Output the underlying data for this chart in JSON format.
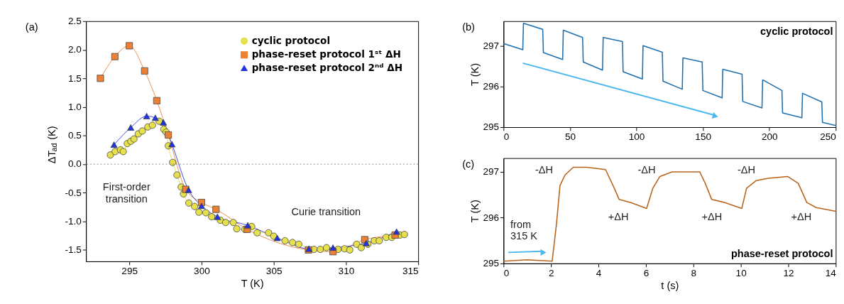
{
  "chart_data": [
    {
      "type": "line",
      "xlabel": "T (K)",
      "ylabel": "ΔT$_{ad}$ (K)",
      "xlim": [
        292,
        315
      ],
      "ylim": [
        -1.7,
        2.5
      ],
      "xticks": [
        295,
        300,
        305,
        310,
        315
      ],
      "yticks": [
        -1.5,
        {
          "value": -1,
          "label": "-1.0"
        },
        -0.5,
        {
          "value": 0,
          "label": "0.0"
        },
        0.5,
        {
          "value": 1,
          "label": "1.0"
        },
        1.5,
        {
          "value": 2,
          "label": "2.0"
        },
        2.5
      ],
      "grid": false,
      "legend": "top right",
      "annotations": [
        "(a)",
        "First-order\ntransition",
        "Curie transition"
      ],
      "ref_lines": [
        {
          "axis": "y",
          "value": 0,
          "color": "#888888",
          "line_style": "dotted"
        }
      ],
      "series": [
        {
          "name": "cyclic protocol",
          "color": "#e6e04c",
          "marker": "circle",
          "x": [
            293.69,
            294.02,
            294.39,
            294.58,
            294.86,
            295.1,
            295.32,
            295.62,
            295.9,
            296.28,
            296.6,
            297.07,
            297.39,
            297.55,
            297.7,
            298.0,
            298.3,
            298.59,
            298.75,
            299.12,
            299.52,
            299.82,
            300.3,
            300.7,
            301.3,
            301.67,
            302.2,
            302.44,
            303.0,
            303.47,
            303.85,
            304.64,
            305.0,
            305.78,
            306.3,
            306.73,
            307.78,
            308.22,
            308.65,
            309.45,
            309.9,
            310.26,
            310.74,
            311.05,
            311.52,
            311.96,
            312.3,
            312.78,
            313.17,
            313.73,
            314.04
          ],
          "values": [
            0.16,
            0.22,
            0.25,
            0.22,
            0.36,
            0.4,
            0.44,
            0.53,
            0.58,
            0.65,
            0.68,
            0.75,
            0.61,
            0.56,
            0.32,
            0.03,
            -0.19,
            -0.4,
            -0.52,
            -0.68,
            -0.74,
            -0.84,
            -0.85,
            -0.92,
            -0.98,
            -1.02,
            -1.02,
            -1.13,
            -1.14,
            -1.09,
            -1.2,
            -1.2,
            -1.26,
            -1.34,
            -1.37,
            -1.4,
            -1.49,
            -1.49,
            -1.46,
            -1.49,
            -1.48,
            -1.5,
            -1.4,
            -1.46,
            -1.4,
            -1.34,
            -1.34,
            -1.28,
            -1.28,
            -1.24,
            -1.23
          ],
          "errors": [
            0.05,
            0.05,
            0.05,
            0.05,
            0.05,
            0.05,
            0.05,
            0.05,
            0.05,
            0.05,
            0.05,
            0.05,
            0.05,
            0.05,
            0.05,
            0.05,
            0.05,
            0.05,
            0.05,
            0.05,
            0.05,
            0.05,
            0.05,
            0.05,
            0.05,
            0.05,
            0.05,
            0.05,
            0.05,
            0.05,
            0.05,
            0.05,
            0.05,
            0.05,
            0.05,
            0.05,
            0.05,
            0.05,
            0.05,
            0.05,
            0.05,
            0.05,
            0.05,
            0.05,
            0.05,
            0.05,
            0.05,
            0.05,
            0.05,
            0.05,
            0.05
          ]
        },
        {
          "name": "phase-reset protocol 1ˢᵗ ΔH",
          "color": "#ee8033",
          "marker": "square",
          "x": [
            293.0,
            294.0,
            295.0,
            296.06,
            296.9,
            297.7,
            298.9,
            300.0,
            301.0,
            303.16,
            307.4,
            309.1,
            311.3,
            313.4
          ],
          "values": [
            1.5,
            1.88,
            2.07,
            1.63,
            1.11,
            0.51,
            -0.44,
            -0.67,
            -0.79,
            -1.14,
            -1.5,
            -1.53,
            -1.32,
            -1.24
          ],
          "errors": [
            0.05,
            0.05,
            0.05,
            0.05,
            0.05,
            0.05,
            0.05,
            0.05,
            0.05,
            0.05,
            0.05,
            0.05,
            0.05,
            0.05
          ]
        },
        {
          "name": "phase-reset protocol 2ⁿᵈ ΔH",
          "color": "#2233dd",
          "marker": "triangle",
          "x": [
            293.94,
            295.1,
            296.2,
            296.8,
            297.36,
            297.95,
            299.1,
            300.0,
            301.1,
            303.2,
            305.24,
            307.43,
            309.1,
            311.4,
            313.5
          ],
          "values": [
            0.34,
            0.64,
            0.84,
            0.81,
            0.73,
            0.35,
            -0.45,
            -0.73,
            -0.92,
            -1.07,
            -1.29,
            -1.48,
            -1.46,
            -1.38,
            -1.18
          ],
          "errors": [
            0.05,
            0.05,
            0.05,
            0.05,
            0.05,
            0.05,
            0.05,
            0.05,
            0.05,
            0.05,
            0.05,
            0.05,
            0.05,
            0.05,
            0.05
          ]
        }
      ]
    },
    {
      "type": "line",
      "title": "cyclic protocol",
      "ylabel": "T (K)",
      "xlim": [
        0,
        250
      ],
      "ylim": [
        295,
        297.6
      ],
      "xticks": [
        0,
        50,
        100,
        150,
        200,
        250
      ],
      "yticks": [
        295,
        296,
        297
      ],
      "grid": false,
      "annotations": [
        "(b)"
      ],
      "series": [
        {
          "color": "#1f6fae",
          "x": [
            0,
            14.5,
            15,
            29.5,
            30,
            44.5,
            45,
            59.5,
            60,
            74.5,
            75,
            89.5,
            90,
            104.5,
            105,
            119.5,
            120,
            134.5,
            135,
            149.5,
            150,
            164.5,
            165,
            179.5,
            180,
            194.5,
            195,
            209.5,
            210,
            224.5,
            225,
            239.5,
            240,
            250
          ],
          "values": [
            297.05,
            296.9,
            297.55,
            297.4,
            296.83,
            296.66,
            297.38,
            297.2,
            296.6,
            296.4,
            297.2,
            297.1,
            296.36,
            296.18,
            297.0,
            296.84,
            296.13,
            295.93,
            296.7,
            296.6,
            295.9,
            295.72,
            296.42,
            296.3,
            295.63,
            295.47,
            296.16,
            295.9,
            295.35,
            295.23,
            295.83,
            295.62,
            295.12,
            295.04
          ]
        }
      ]
    },
    {
      "type": "line",
      "title": "phase-reset protocol",
      "xlabel": "t (s)",
      "ylabel": "T (K)",
      "xlim": [
        0,
        14
      ],
      "ylim": [
        295,
        297.3
      ],
      "xticks": [
        0,
        2,
        4,
        6,
        8,
        10,
        12,
        14
      ],
      "yticks": [
        295,
        296,
        297
      ],
      "grid": false,
      "annotations": [
        "(c)",
        "-ΔH",
        "-ΔH",
        "-ΔH",
        "+ΔH",
        "+ΔH",
        "+ΔH",
        "from\n315 K"
      ],
      "series": [
        {
          "color": "#b8631a",
          "x": [
            0,
            1,
            2.05,
            2.23,
            2.38,
            2.59,
            2.94,
            3.5,
            4.0,
            4.3,
            4.67,
            4.87,
            5.37,
            6.03,
            6.29,
            6.59,
            7.1,
            8.27,
            8.5,
            8.77,
            9.33,
            10.04,
            10.24,
            10.65,
            11.16,
            11.97,
            12.42,
            12.78,
            13.18,
            14
          ],
          "values": [
            295.05,
            295.08,
            295.05,
            295.85,
            296.7,
            296.93,
            297.1,
            297.1,
            297.07,
            297.05,
            296.64,
            296.4,
            296.33,
            296.2,
            296.64,
            296.9,
            297.0,
            297.0,
            296.75,
            296.4,
            296.33,
            296.2,
            296.64,
            296.81,
            296.86,
            296.9,
            296.75,
            296.33,
            296.22,
            296.14
          ]
        }
      ]
    }
  ]
}
